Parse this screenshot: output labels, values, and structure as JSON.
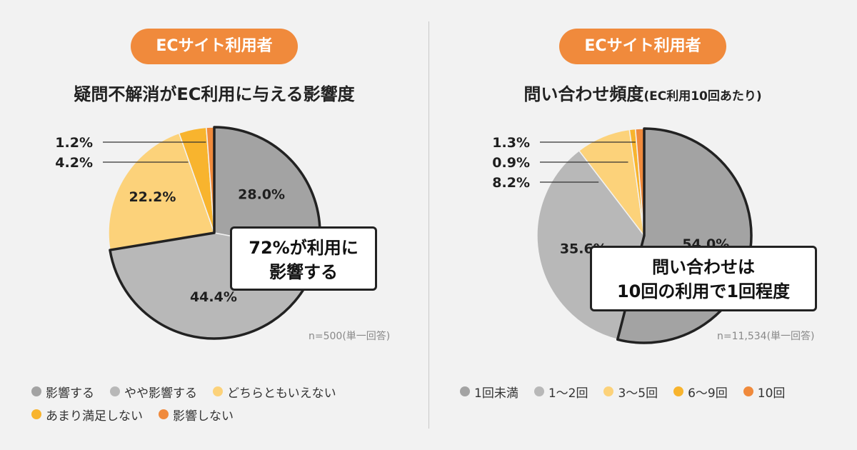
{
  "left": {
    "badge": "ECサイト利用者",
    "title": "疑問不解消がEC利用に与える影響度",
    "note_line1": "72%が利用に",
    "note_line2": "影響する",
    "n_label": "n=500(単一回答)"
  },
  "right": {
    "badge": "ECサイト利用者",
    "title_main": "問い合わせ頻度",
    "title_sub": "(EC利用10回あたり)",
    "note_line1": "問い合わせは",
    "note_line2": "10回の利用で1回程度",
    "n_label": "n=11,534(単一回答)"
  },
  "chart_data": [
    {
      "type": "pie",
      "title": "疑問不解消がEC利用に与える影響度",
      "categories": [
        "影響する",
        "やや影響する",
        "どちらともいえない",
        "あまり満足しない",
        "影響しない"
      ],
      "values": [
        28.0,
        44.4,
        22.2,
        4.2,
        1.2
      ],
      "labels": [
        "28.0%",
        "44.4%",
        "22.2%",
        "4.2%",
        "1.2%"
      ],
      "colors": [
        "#a3a3a3",
        "#b8b8b8",
        "#fcd27a",
        "#f8b42e",
        "#f08a3c"
      ],
      "highlight_first_slices": 2,
      "legend_position": "bottom"
    },
    {
      "type": "pie",
      "title": "問い合わせ頻度(EC利用10回あたり)",
      "categories": [
        "1回未満",
        "1〜2回",
        "3〜5回",
        "6〜9回",
        "10回"
      ],
      "values": [
        54.0,
        35.6,
        8.2,
        0.9,
        1.3
      ],
      "labels": [
        "54.0%",
        "35.6%",
        "8.2%",
        "0.9%",
        "1.3%"
      ],
      "colors": [
        "#a3a3a3",
        "#b8b8b8",
        "#fcd27a",
        "#f8b42e",
        "#f08a3c"
      ],
      "highlight_first_slices": 1,
      "legend_position": "bottom"
    }
  ]
}
